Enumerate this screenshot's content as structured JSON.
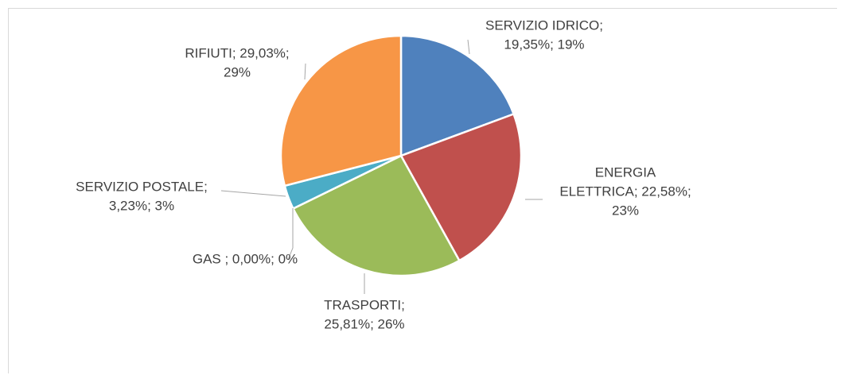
{
  "chart_data": {
    "type": "pie",
    "values": [
      19.35,
      22.58,
      25.81,
      0,
      3.23,
      29.03
    ],
    "value_labels": [
      [
        "SERVIZIO IDRICO;",
        "19,35%; 19%"
      ],
      [
        "ENERGIA",
        "ELETTRICA; 22,58%;",
        "23%"
      ],
      [
        "TRASPORTI;",
        "25,81%; 26%"
      ],
      [
        "GAS ; 0,00%; 0%"
      ],
      [
        "SERVIZIO POSTALE;",
        "3,23%; 3%"
      ],
      [
        "RIFIUTI; 29,03%;",
        "29%"
      ]
    ],
    "colors": [
      "#4f81bd",
      "#c0504d",
      "#9bbb59",
      "#8064a2",
      "#4bacc6",
      "#f79646"
    ]
  }
}
